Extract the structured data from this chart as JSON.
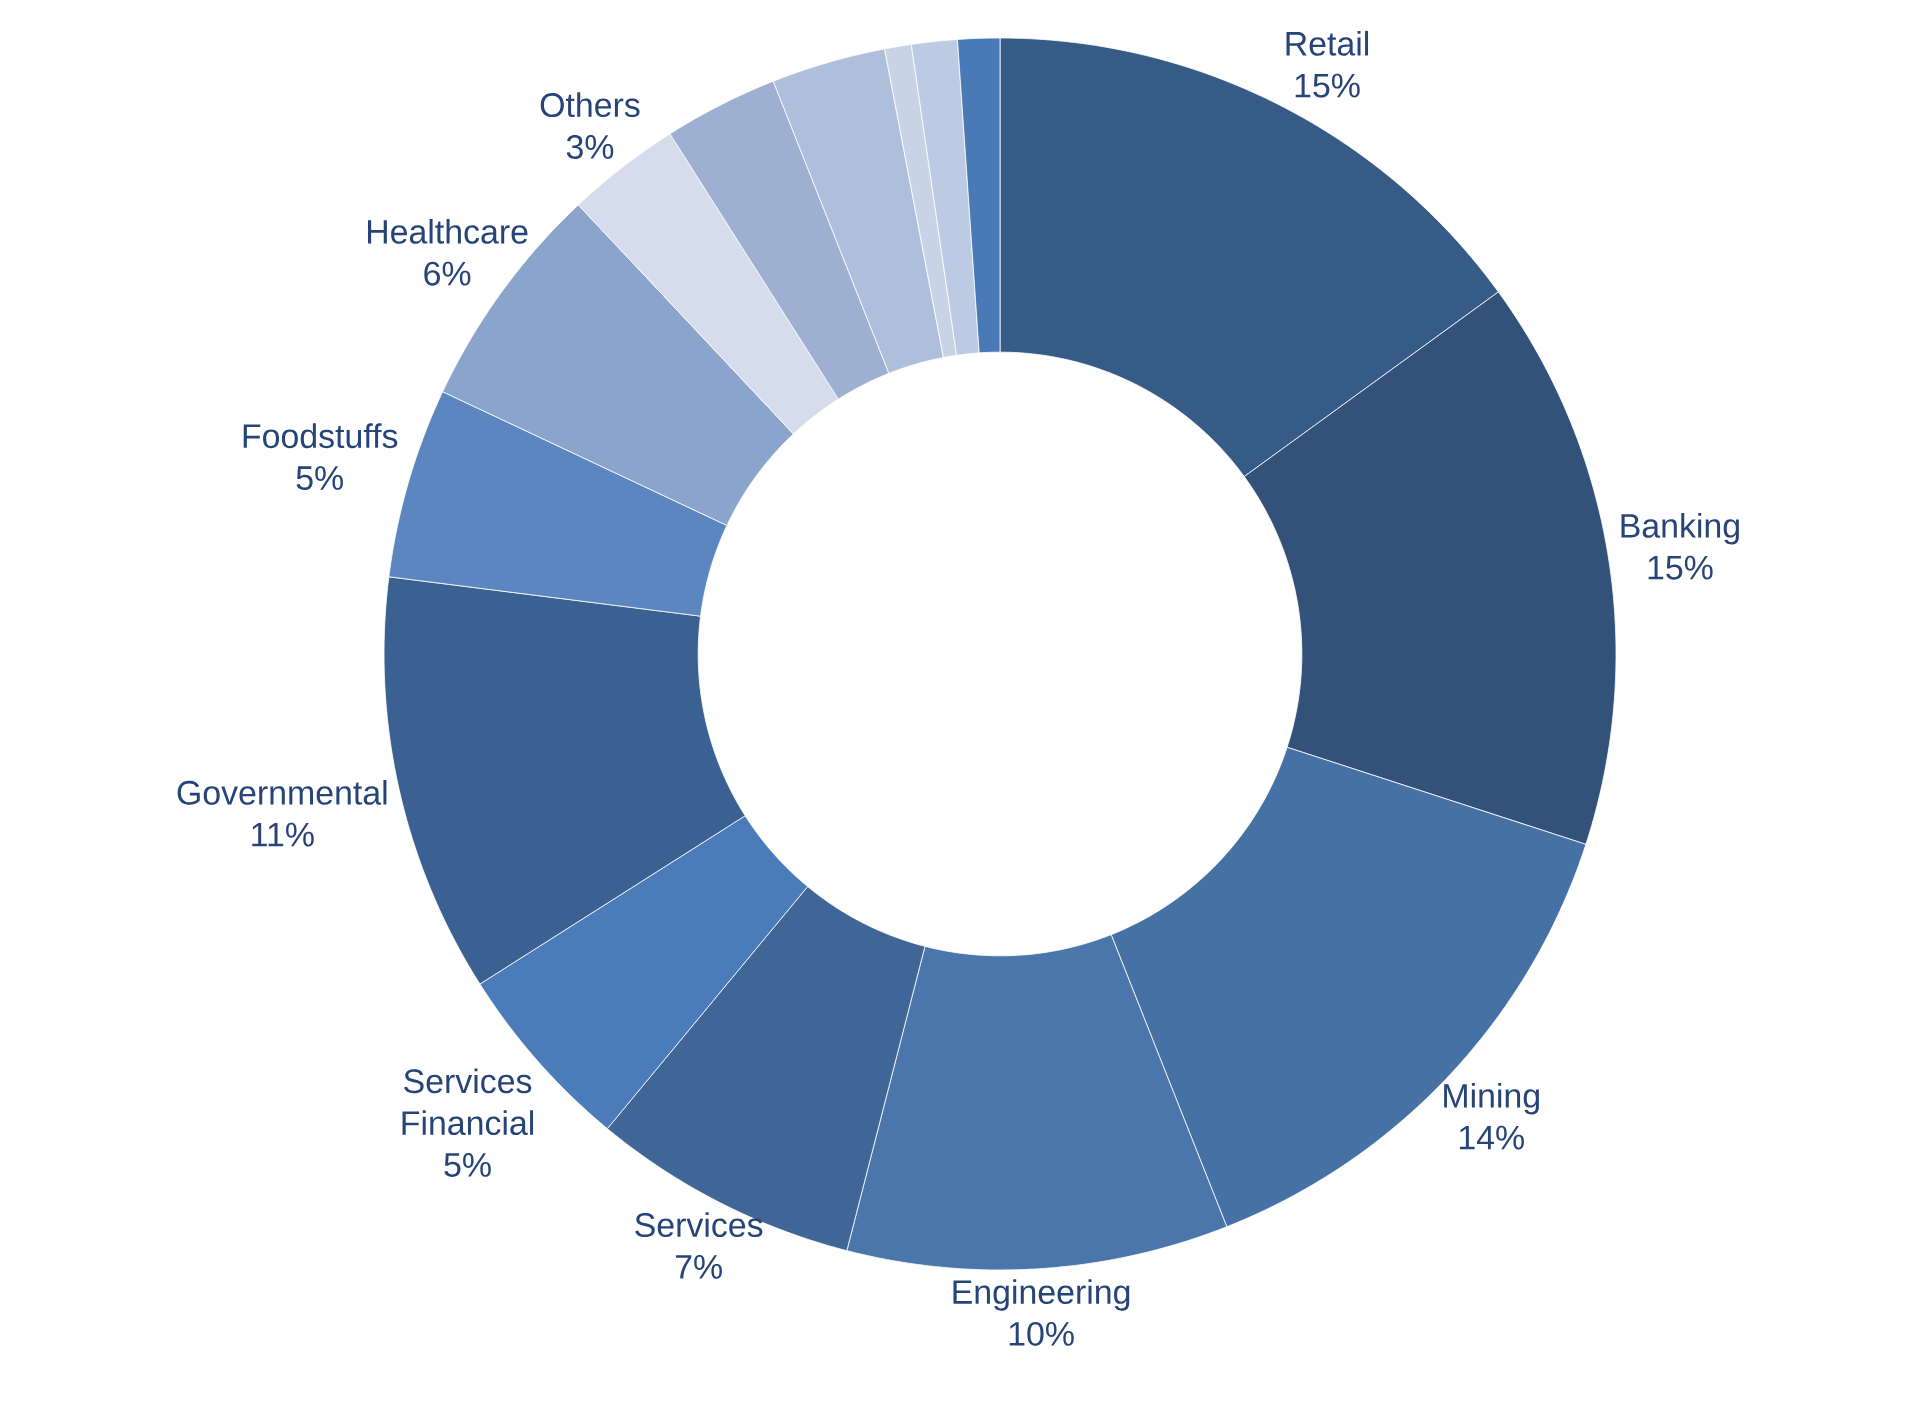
{
  "chart_data": {
    "type": "donut",
    "categories": [
      "Retail",
      "Banking",
      "Mining",
      "Engineering",
      "Services",
      "Services Financial",
      "Governmental",
      "Foodstuffs",
      "Healthcare",
      "Others",
      null,
      null,
      null,
      null,
      null
    ],
    "values": [
      15,
      15,
      14,
      10,
      7,
      5,
      11,
      5,
      6,
      3,
      3,
      3,
      0.7,
      1.2,
      1.1
    ],
    "value_labels": [
      "15%",
      "15%",
      "14%",
      "10%",
      "7%",
      "5%",
      "11%",
      "5%",
      "6%",
      "3%",
      null,
      null,
      null,
      null,
      null
    ],
    "colors": [
      "#365b87",
      "#325279",
      "#4671a5",
      "#4a76ab",
      "#3f6697",
      "#4b7bb8",
      "#3b6192",
      "#5b86c0",
      "#8ba4cc",
      "#d5dceb",
      "#9db0d2",
      "#aebfdc",
      "#c9d3e6",
      "#bccae3",
      "#4a7ab5"
    ],
    "legend": false
  }
}
